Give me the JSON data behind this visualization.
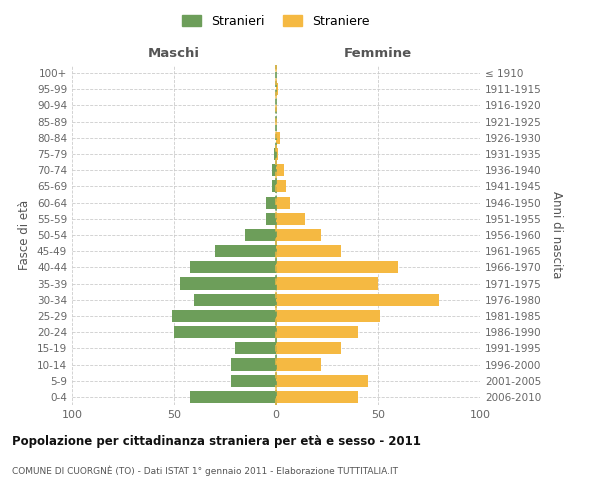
{
  "age_groups": [
    "0-4",
    "5-9",
    "10-14",
    "15-19",
    "20-24",
    "25-29",
    "30-34",
    "35-39",
    "40-44",
    "45-49",
    "50-54",
    "55-59",
    "60-64",
    "65-69",
    "70-74",
    "75-79",
    "80-84",
    "85-89",
    "90-94",
    "95-99",
    "100+"
  ],
  "birth_years": [
    "2006-2010",
    "2001-2005",
    "1996-2000",
    "1991-1995",
    "1986-1990",
    "1981-1985",
    "1976-1980",
    "1971-1975",
    "1966-1970",
    "1961-1965",
    "1956-1960",
    "1951-1955",
    "1946-1950",
    "1941-1945",
    "1936-1940",
    "1931-1935",
    "1926-1930",
    "1921-1925",
    "1916-1920",
    "1911-1915",
    "≤ 1910"
  ],
  "maschi": [
    42,
    22,
    22,
    20,
    50,
    51,
    40,
    47,
    42,
    30,
    15,
    5,
    5,
    2,
    2,
    1,
    0,
    0,
    0,
    0,
    0
  ],
  "femmine": [
    40,
    45,
    22,
    32,
    40,
    51,
    80,
    50,
    60,
    32,
    22,
    14,
    7,
    5,
    4,
    1,
    2,
    0,
    0,
    1,
    0
  ],
  "color_maschi": "#6d9e5a",
  "color_femmine": "#f5b942",
  "title": "Popolazione per cittadinanza straniera per età e sesso - 2011",
  "subtitle": "COMUNE DI CUORGNÈ (TO) - Dati ISTAT 1° gennaio 2011 - Elaborazione TUTTITALIA.IT",
  "xlabel_left": "Maschi",
  "xlabel_right": "Femmine",
  "ylabel_left": "Fasce di età",
  "ylabel_right": "Anni di nascita",
  "legend_maschi": "Stranieri",
  "legend_femmine": "Straniere",
  "xlim": 100,
  "bg_color": "#ffffff",
  "grid_color": "#cccccc"
}
